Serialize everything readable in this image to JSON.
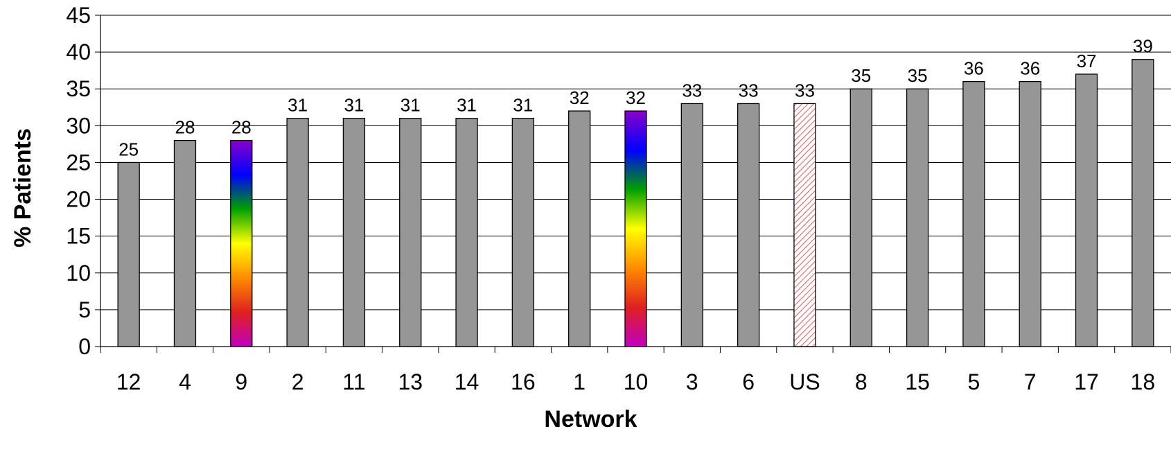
{
  "chart_data": {
    "type": "bar",
    "xlabel": "Network",
    "ylabel": "% Patients",
    "ylim": [
      0,
      45
    ],
    "yticks": [
      0,
      5,
      10,
      15,
      20,
      25,
      30,
      35,
      40,
      45
    ],
    "grid": true,
    "categories": [
      "12",
      "4",
      "9",
      "2",
      "11",
      "13",
      "14",
      "16",
      "1",
      "10",
      "3",
      "6",
      "US",
      "8",
      "15",
      "5",
      "7",
      "17",
      "18"
    ],
    "values": [
      25,
      28,
      28,
      31,
      31,
      31,
      31,
      31,
      32,
      32,
      33,
      33,
      33,
      35,
      35,
      36,
      36,
      37,
      39
    ],
    "data_labels": [
      "25",
      "28",
      "28",
      "31",
      "31",
      "31",
      "31",
      "31",
      "32",
      "32",
      "33",
      "33",
      "33",
      "35",
      "35",
      "36",
      "36",
      "37",
      "39"
    ],
    "bar_styles": [
      "gray",
      "gray",
      "rainbow",
      "gray",
      "gray",
      "gray",
      "gray",
      "gray",
      "gray",
      "rainbow",
      "gray",
      "gray",
      "hatched",
      "gray",
      "gray",
      "gray",
      "gray",
      "gray",
      "gray"
    ],
    "colors": {
      "bar_fill": "#969696",
      "bar_stroke": "#000000",
      "grid": "#000000",
      "hatch_stroke": "#e05a5a",
      "hatch_bg": "#ffffff",
      "rainbow": [
        "#8b00c8",
        "#0000ff",
        "#00a000",
        "#ffff00",
        "#ff8c00",
        "#e02020",
        "#c000c0"
      ]
    }
  }
}
